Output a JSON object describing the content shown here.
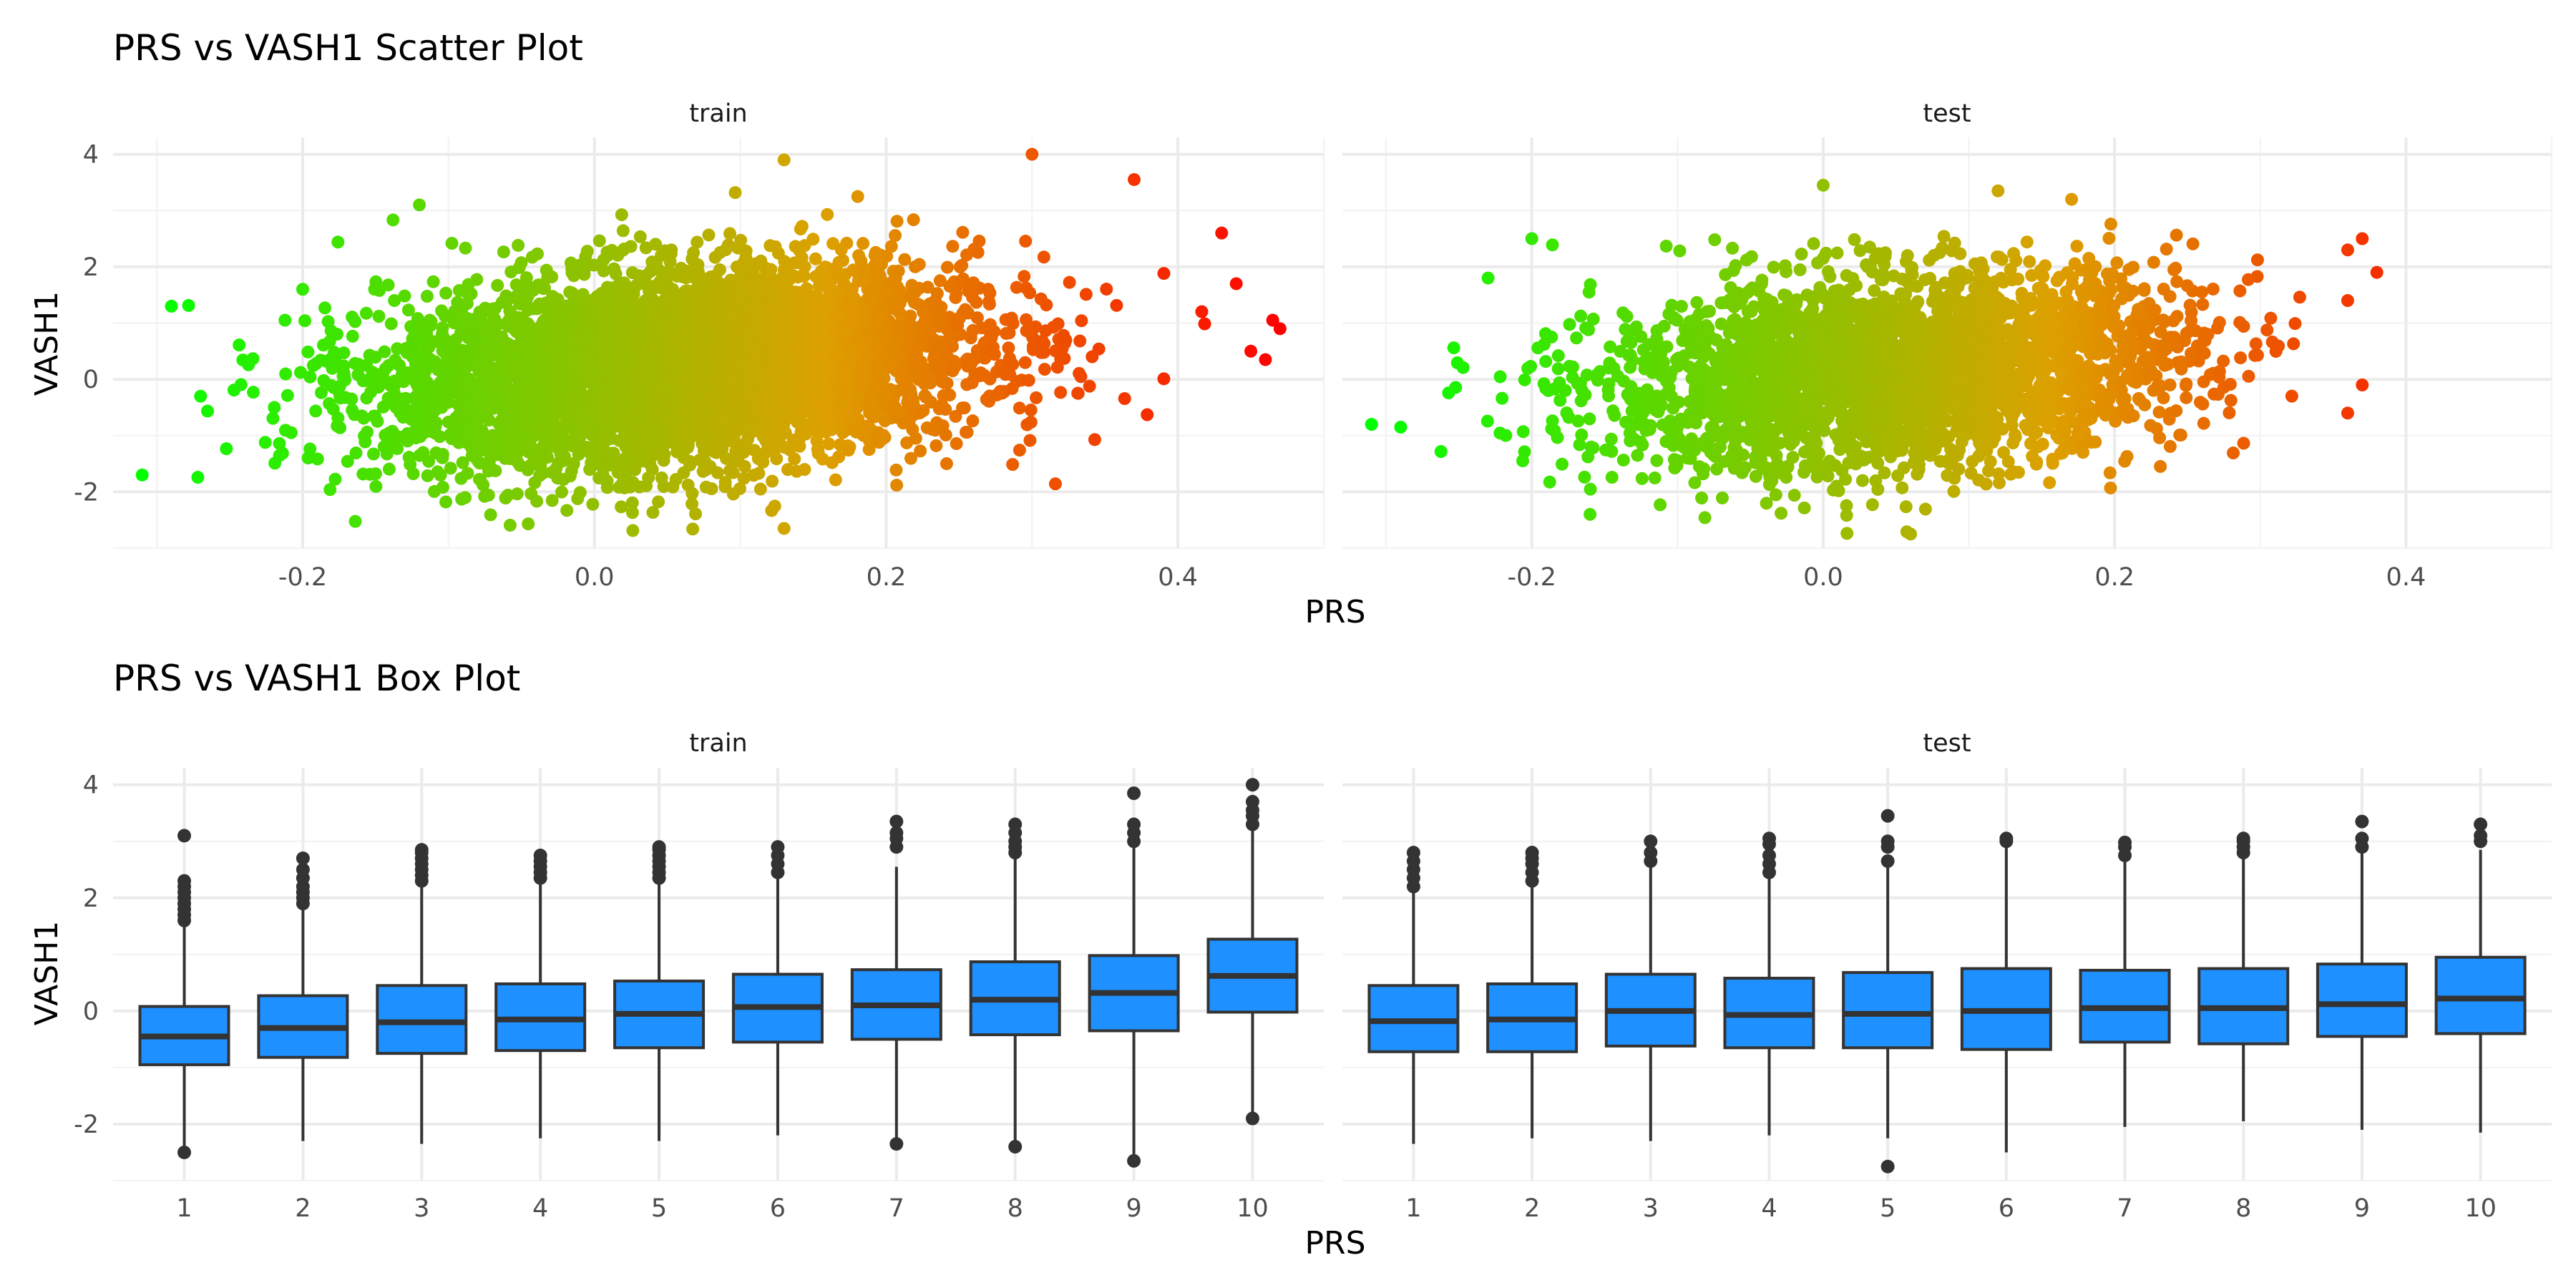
{
  "figure": {
    "x_axis_label": "PRS",
    "y_axis_label": "VASH1"
  },
  "chart_data": [
    {
      "type": "scatter",
      "title": "PRS vs VASH1 Scatter Plot",
      "xlabel": "PRS",
      "ylabel": "VASH1",
      "facets": [
        "train",
        "test"
      ],
      "x_ticks": [
        "-0.2",
        "0.0",
        "0.2",
        "0.4"
      ],
      "y_ticks": [
        "-2",
        "0",
        "2",
        "4"
      ],
      "xlim": [
        -0.33,
        0.5
      ],
      "ylim": [
        -3.0,
        4.3
      ],
      "grid": true,
      "color_scale": {
        "low": "#00ff00",
        "mid": "#dda000",
        "high": "#ff0000",
        "mapped_to": "PRS"
      },
      "series": [
        {
          "facet": "train",
          "n_points_approx": 20000,
          "x_range": [
            -0.31,
            0.47
          ],
          "y_range": [
            -2.7,
            4.0
          ],
          "core_center": [
            0.06,
            0.2
          ],
          "notable_points": [
            {
              "x": -0.31,
              "y": -1.7
            },
            {
              "x": -0.29,
              "y": 1.3
            },
            {
              "x": -0.27,
              "y": -0.3
            },
            {
              "x": -0.2,
              "y": 1.6
            },
            {
              "x": -0.12,
              "y": 3.1
            },
            {
              "x": 0.13,
              "y": 3.9
            },
            {
              "x": 0.13,
              "y": -2.65
            },
            {
              "x": 0.3,
              "y": 4.0
            },
            {
              "x": 0.37,
              "y": 3.55
            },
            {
              "x": 0.43,
              "y": 2.6
            },
            {
              "x": 0.44,
              "y": 1.7
            },
            {
              "x": 0.45,
              "y": 0.5
            },
            {
              "x": 0.46,
              "y": 0.35
            },
            {
              "x": 0.47,
              "y": 0.9
            },
            {
              "x": 0.465,
              "y": 1.05
            }
          ]
        },
        {
          "facet": "test",
          "n_points_approx": 8000,
          "x_range": [
            -0.31,
            0.38
          ],
          "y_range": [
            -2.75,
            3.45
          ],
          "core_center": [
            0.05,
            0.15
          ],
          "notable_points": [
            {
              "x": -0.31,
              "y": -0.8
            },
            {
              "x": -0.29,
              "y": -0.85
            },
            {
              "x": -0.23,
              "y": 1.8
            },
            {
              "x": -0.2,
              "y": 2.5
            },
            {
              "x": -0.16,
              "y": -2.4
            },
            {
              "x": 0.0,
              "y": 3.45
            },
            {
              "x": 0.12,
              "y": 3.35
            },
            {
              "x": 0.06,
              "y": -2.75
            },
            {
              "x": 0.36,
              "y": 2.3
            },
            {
              "x": 0.37,
              "y": 2.5
            },
            {
              "x": 0.38,
              "y": 1.9
            },
            {
              "x": 0.36,
              "y": 1.4
            },
            {
              "x": 0.37,
              "y": -0.1
            },
            {
              "x": 0.36,
              "y": -0.6
            }
          ]
        }
      ]
    },
    {
      "type": "box",
      "title": "PRS vs VASH1 Box Plot",
      "xlabel": "PRS",
      "ylabel": "VASH1",
      "facets": [
        "train",
        "test"
      ],
      "categories": [
        "1",
        "2",
        "3",
        "4",
        "5",
        "6",
        "7",
        "8",
        "9",
        "10"
      ],
      "y_ticks": [
        "-2",
        "0",
        "2",
        "4"
      ],
      "ylim": [
        -3.0,
        4.3
      ],
      "grid": true,
      "fill_color": "#1e90ff",
      "series": [
        {
          "facet": "train",
          "boxes": [
            {
              "q1": -0.95,
              "median": -0.45,
              "q3": 0.08,
              "whisker_low": -2.5,
              "whisker_high": 1.55,
              "outliers": [
                -2.5,
                1.6,
                1.7,
                1.8,
                1.9,
                2.0,
                2.1,
                2.2,
                2.3,
                3.1
              ]
            },
            {
              "q1": -0.82,
              "median": -0.3,
              "q3": 0.27,
              "whisker_low": -2.3,
              "whisker_high": 1.85,
              "outliers": [
                1.9,
                2.0,
                2.1,
                2.2,
                2.35,
                2.5,
                2.7
              ]
            },
            {
              "q1": -0.75,
              "median": -0.2,
              "q3": 0.45,
              "whisker_low": -2.35,
              "whisker_high": 2.25,
              "outliers": [
                2.3,
                2.4,
                2.5,
                2.6,
                2.7,
                2.8,
                2.85
              ]
            },
            {
              "q1": -0.7,
              "median": -0.15,
              "q3": 0.48,
              "whisker_low": -2.25,
              "whisker_high": 2.3,
              "outliers": [
                2.35,
                2.45,
                2.55,
                2.65,
                2.75
              ]
            },
            {
              "q1": -0.65,
              "median": -0.05,
              "q3": 0.53,
              "whisker_low": -2.3,
              "whisker_high": 2.3,
              "outliers": [
                2.35,
                2.45,
                2.55,
                2.65,
                2.75,
                2.85,
                2.9
              ]
            },
            {
              "q1": -0.55,
              "median": 0.07,
              "q3": 0.65,
              "whisker_low": -2.2,
              "whisker_high": 2.35,
              "outliers": [
                2.45,
                2.6,
                2.75,
                2.9
              ]
            },
            {
              "q1": -0.5,
              "median": 0.1,
              "q3": 0.73,
              "whisker_low": -2.35,
              "whisker_high": 2.55,
              "outliers": [
                -2.35,
                2.9,
                3.05,
                3.15,
                3.35
              ]
            },
            {
              "q1": -0.42,
              "median": 0.2,
              "q3": 0.87,
              "whisker_low": -2.4,
              "whisker_high": 2.75,
              "outliers": [
                -2.4,
                2.8,
                2.9,
                3.0,
                3.15,
                3.3
              ]
            },
            {
              "q1": -0.35,
              "median": 0.32,
              "q3": 0.98,
              "whisker_low": -2.65,
              "whisker_high": 2.95,
              "outliers": [
                -2.65,
                3.0,
                3.15,
                3.3,
                3.85
              ]
            },
            {
              "q1": -0.02,
              "median": 0.62,
              "q3": 1.27,
              "whisker_low": -1.9,
              "whisker_high": 3.2,
              "outliers": [
                -1.9,
                3.3,
                3.45,
                3.55,
                3.7,
                4.0
              ]
            }
          ]
        },
        {
          "facet": "test",
          "boxes": [
            {
              "q1": -0.72,
              "median": -0.18,
              "q3": 0.45,
              "whisker_low": -2.35,
              "whisker_high": 2.15,
              "outliers": [
                2.2,
                2.35,
                2.5,
                2.65,
                2.8
              ]
            },
            {
              "q1": -0.72,
              "median": -0.15,
              "q3": 0.48,
              "whisker_low": -2.25,
              "whisker_high": 2.2,
              "outliers": [
                2.3,
                2.45,
                2.6,
                2.7,
                2.8
              ]
            },
            {
              "q1": -0.62,
              "median": 0.0,
              "q3": 0.65,
              "whisker_low": -2.3,
              "whisker_high": 2.55,
              "outliers": [
                2.65,
                2.8,
                3.0
              ]
            },
            {
              "q1": -0.65,
              "median": -0.07,
              "q3": 0.58,
              "whisker_low": -2.2,
              "whisker_high": 2.4,
              "outliers": [
                2.45,
                2.6,
                2.75,
                2.95,
                3.05
              ]
            },
            {
              "q1": -0.65,
              "median": -0.05,
              "q3": 0.68,
              "whisker_low": -2.25,
              "whisker_high": 2.6,
              "outliers": [
                -2.75,
                2.65,
                2.9,
                3.0,
                3.45
              ]
            },
            {
              "q1": -0.68,
              "median": 0.0,
              "q3": 0.75,
              "whisker_low": -2.5,
              "whisker_high": 2.95,
              "outliers": [
                3.0,
                3.05
              ]
            },
            {
              "q1": -0.55,
              "median": 0.05,
              "q3": 0.72,
              "whisker_low": -2.05,
              "whisker_high": 2.7,
              "outliers": [
                2.75,
                2.9,
                2.98
              ]
            },
            {
              "q1": -0.58,
              "median": 0.05,
              "q3": 0.75,
              "whisker_low": -1.95,
              "whisker_high": 2.75,
              "outliers": [
                2.8,
                2.9,
                3.0,
                3.05
              ]
            },
            {
              "q1": -0.45,
              "median": 0.12,
              "q3": 0.83,
              "whisker_low": -2.1,
              "whisker_high": 2.8,
              "outliers": [
                2.9,
                3.05,
                3.35
              ]
            },
            {
              "q1": -0.4,
              "median": 0.22,
              "q3": 0.95,
              "whisker_low": -2.15,
              "whisker_high": 2.85,
              "outliers": [
                3.0,
                3.1,
                3.3
              ]
            }
          ]
        }
      ]
    }
  ]
}
